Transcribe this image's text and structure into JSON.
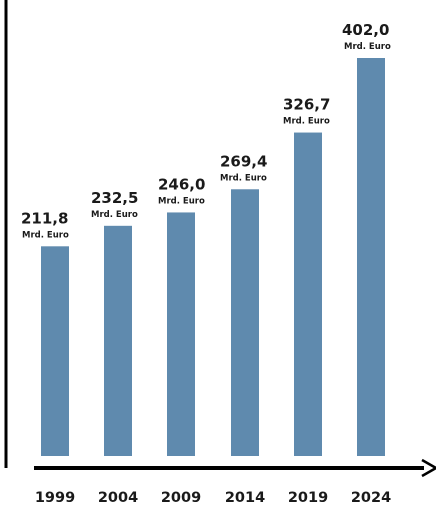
{
  "chart_data": {
    "type": "bar",
    "categories": [
      "1999",
      "2004",
      "2009",
      "2014",
      "2019",
      "2024"
    ],
    "values": [
      211.8,
      232.5,
      246.0,
      269.4,
      326.7,
      402.0
    ],
    "value_labels": [
      "211,8",
      "232,5",
      "246,0",
      "269,4",
      "326,7",
      "402,0"
    ],
    "unit_label": "Mrd. Euro",
    "bar_color": "#5f8aae",
    "axis_color": "#000000",
    "xlabel": "",
    "ylabel": "",
    "grid": false
  }
}
